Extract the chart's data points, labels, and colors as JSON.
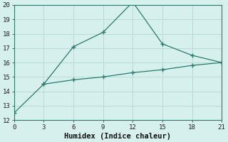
{
  "xlabel": "Humidex (Indice chaleur)",
  "line1_x": [
    0,
    3,
    6,
    9,
    12,
    15,
    18,
    21
  ],
  "line1_y": [
    12.5,
    14.5,
    17.1,
    18.1,
    20.2,
    17.3,
    16.5,
    16.0
  ],
  "line2_x": [
    3,
    6,
    9,
    12,
    15,
    18,
    21
  ],
  "line2_y": [
    14.5,
    14.8,
    15.0,
    15.3,
    15.5,
    15.8,
    16.0
  ],
  "line_color": "#2a7a6e",
  "bg_color": "#d6f0ee",
  "grid_color": "#b8dbd8",
  "xlim": [
    0,
    21
  ],
  "ylim": [
    12,
    20
  ],
  "xticks": [
    0,
    3,
    6,
    9,
    12,
    15,
    18,
    21
  ],
  "yticks": [
    12,
    13,
    14,
    15,
    16,
    17,
    18,
    19,
    20
  ],
  "xlabel_fontsize": 7.5,
  "tick_fontsize": 6.5
}
